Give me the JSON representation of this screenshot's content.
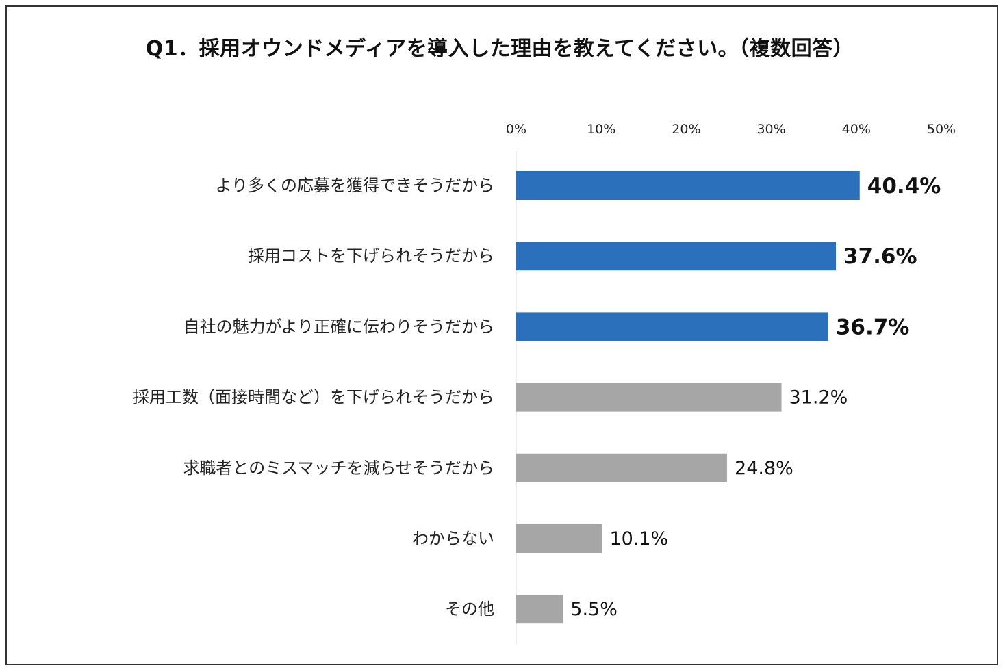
{
  "title": "Q1．採用オウンドメディアを導入した理由を教えてください。（複数回答）",
  "chart_data": {
    "type": "bar",
    "orientation": "horizontal",
    "title": "Q1．採用オウンドメディアを導入した理由を教えてください。（複数回答）",
    "xlim": [
      0,
      50
    ],
    "xticks": [
      "0%",
      "10%",
      "20%",
      "30%",
      "40%",
      "50%"
    ],
    "xtick_values": [
      0,
      10,
      20,
      30,
      40,
      50
    ],
    "axis_position": "top",
    "grid": false,
    "legend": "none",
    "categories": [
      "より多くの応募を獲得できそうだから",
      "採用コストを下げられそうだから",
      "自社の魅力がより正確に伝わりそうだから",
      "採用工数（面接時間など）を下げられそうだから",
      "求職者とのミスマッチを減らせそうだから",
      "わからない",
      "その他"
    ],
    "values": [
      40.4,
      37.6,
      36.7,
      31.2,
      24.8,
      10.1,
      5.5
    ],
    "value_labels": [
      "40.4%",
      "37.6%",
      "36.7%",
      "31.2%",
      "24.8%",
      "10.1%",
      "5.5%"
    ],
    "highlighted": [
      true,
      true,
      true,
      false,
      false,
      false,
      false
    ],
    "colors": {
      "highlight": "#2b70bb",
      "normal": "#a6a6a6",
      "axis": "#d9d9d9"
    }
  }
}
